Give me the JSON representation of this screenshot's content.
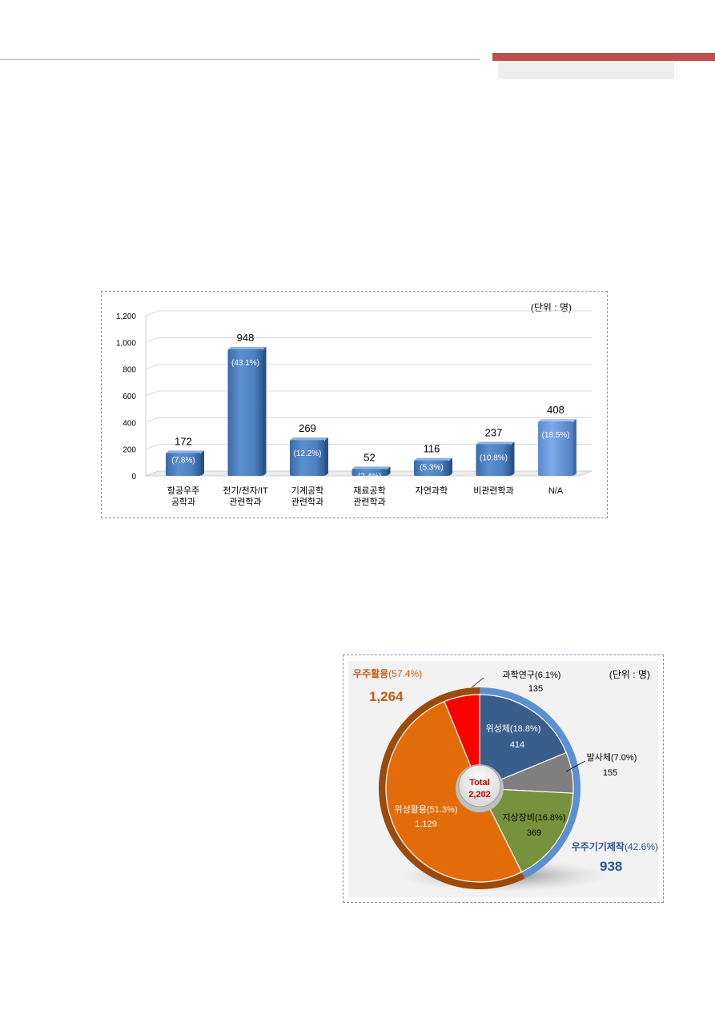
{
  "colors": {
    "header_accent": "#c0504d",
    "bar_fill": "#4f81bd",
    "bar_na_fill": "#6d9be3",
    "satellite": "#3a5e8c",
    "launcher": "#7f7f7f",
    "ground": "#76923c",
    "sat_use": "#e36c0a",
    "science": "#ff0000",
    "space_use_label": "#c55a11",
    "manufacturing_label": "#2f5597",
    "total_text": "#c00000"
  },
  "chart_data": [
    {
      "type": "bar",
      "unit_label": "(단위 : 명)",
      "ylim": [
        0,
        1200
      ],
      "yticks": [
        "0",
        "200",
        "400",
        "600",
        "800",
        "1,000",
        "1,200"
      ],
      "ytick_values": [
        0,
        200,
        400,
        600,
        800,
        1000,
        1200
      ],
      "grid": true,
      "categories": [
        [
          "항공우주",
          "공학과"
        ],
        [
          "전기/전자/IT",
          "관련학과"
        ],
        [
          "기계공학",
          "관련학과"
        ],
        [
          "재료공학",
          "관련학과"
        ],
        [
          "자연과학"
        ],
        [
          "비관련학과"
        ],
        [
          "N/A"
        ]
      ],
      "values": [
        172,
        948,
        269,
        52,
        116,
        237,
        408
      ],
      "value_labels": [
        "172",
        "948",
        "269",
        "52",
        "116",
        "237",
        "408"
      ],
      "percent_labels": [
        "(7.8%)",
        "(43.1%)",
        "(12.2%)",
        "(2.4%)",
        "(5.3%)",
        "(10.8%)",
        "(18.5%)"
      ]
    },
    {
      "type": "pie",
      "unit_label": "(단위 : 명)",
      "center_label": "Total",
      "center_value": "2,202",
      "total": 2202,
      "slices": [
        {
          "key": "satellite",
          "label": "위성체(18.8%)",
          "value_label": "414",
          "value": 414
        },
        {
          "key": "launcher",
          "label": "발사체(7.0%)",
          "value_label": "155",
          "value": 155
        },
        {
          "key": "ground",
          "label": "지상장비(16.8%)",
          "value_label": "369",
          "value": 369
        },
        {
          "key": "sat_use",
          "label": "위성활용(51.3%)",
          "value_label": "1,129",
          "value": 1129
        },
        {
          "key": "science",
          "label": "과학연구(6.1%)",
          "value_label": "135",
          "value": 135
        }
      ],
      "groups": [
        {
          "name": "우주활용",
          "percent": "(57.4%)",
          "value_label": "1,264"
        },
        {
          "name": "우주기기제작",
          "percent": "(42.6%)",
          "value_label": "938"
        }
      ]
    }
  ]
}
